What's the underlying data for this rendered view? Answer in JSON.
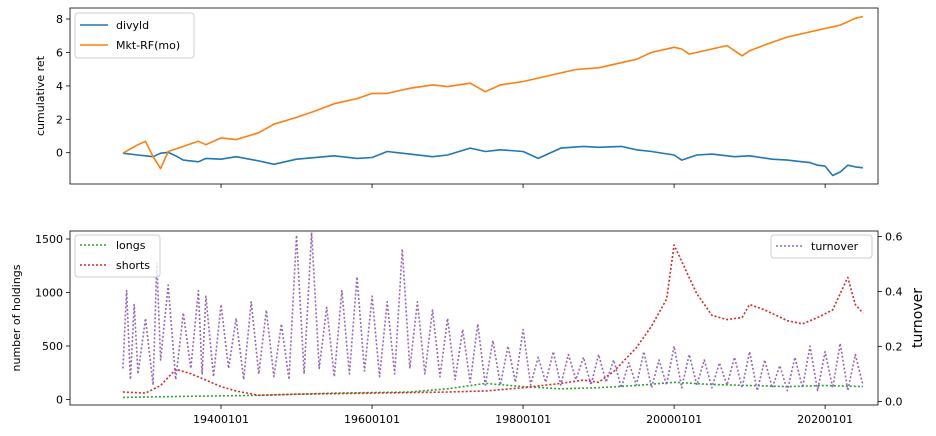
{
  "chart_data": [
    {
      "type": "line",
      "title": "",
      "xlabel": "",
      "ylabel": "cumulative ret",
      "xlim": [
        1920,
        2027
      ],
      "ylim": [
        -1.8,
        8.5
      ],
      "yticks": [
        "0",
        "2",
        "4",
        "6",
        "8"
      ],
      "grid": false,
      "legend": "upper-left",
      "series": [
        {
          "name": "divyld",
          "color": "#1f77b4",
          "x": [
            1927,
            1929,
            1931,
            1932,
            1933,
            1934,
            1935,
            1937,
            1938,
            1940,
            1942,
            1945,
            1947,
            1950,
            1955,
            1958,
            1960,
            1962,
            1965,
            1968,
            1970,
            1973,
            1975,
            1977,
            1980,
            1982,
            1985,
            1988,
            1990,
            1993,
            1995,
            1997,
            2000,
            2001,
            2003,
            2005,
            2008,
            2010,
            2013,
            2015,
            2017,
            2018,
            2019,
            2020,
            2021,
            2022,
            2023,
            2024,
            2025
          ],
          "values": [
            0.0,
            -0.1,
            -0.2,
            0.0,
            0.05,
            -0.15,
            -0.4,
            -0.5,
            -0.3,
            -0.35,
            -0.2,
            -0.45,
            -0.65,
            -0.35,
            -0.15,
            -0.3,
            -0.25,
            0.1,
            -0.05,
            -0.2,
            -0.1,
            0.3,
            0.1,
            0.2,
            0.1,
            -0.3,
            0.3,
            0.4,
            0.35,
            0.4,
            0.2,
            0.1,
            -0.1,
            -0.4,
            -0.1,
            -0.05,
            -0.2,
            -0.15,
            -0.35,
            -0.4,
            -0.5,
            -0.55,
            -0.7,
            -0.75,
            -1.3,
            -1.1,
            -0.7,
            -0.8,
            -0.85
          ]
        },
        {
          "name": "Mkt-RF(mo)",
          "color": "#ff7f0e",
          "x": [
            1927,
            1929,
            1930,
            1931,
            1932,
            1933,
            1935,
            1937,
            1938,
            1940,
            1942,
            1945,
            1947,
            1950,
            1952,
            1955,
            1958,
            1960,
            1962,
            1965,
            1968,
            1970,
            1973,
            1975,
            1977,
            1980,
            1982,
            1985,
            1987,
            1990,
            1993,
            1995,
            1997,
            2000,
            2001,
            2002,
            2005,
            2007,
            2008,
            2009,
            2010,
            2013,
            2015,
            2017,
            2018,
            2019,
            2020,
            2021,
            2022,
            2023,
            2024,
            2025
          ],
          "values": [
            0.0,
            0.5,
            0.7,
            -0.2,
            -0.9,
            0.1,
            0.4,
            0.7,
            0.5,
            0.9,
            0.8,
            1.2,
            1.7,
            2.1,
            2.4,
            2.9,
            3.2,
            3.5,
            3.5,
            3.8,
            4.0,
            3.9,
            4.1,
            3.6,
            4.0,
            4.2,
            4.4,
            4.7,
            4.9,
            5.0,
            5.3,
            5.5,
            5.9,
            6.2,
            6.1,
            5.8,
            6.1,
            6.3,
            6.0,
            5.7,
            6.0,
            6.5,
            6.8,
            7.0,
            7.1,
            7.2,
            7.3,
            7.4,
            7.5,
            7.7,
            7.9,
            8.0
          ]
        }
      ]
    },
    {
      "type": "line",
      "title": "",
      "xlabel": "",
      "ylabel": "number of holdings",
      "y2label": "turnover",
      "xlim": [
        1920,
        2027
      ],
      "ylim": [
        -30,
        1580
      ],
      "y2lim": [
        -0.012,
        0.615
      ],
      "xticks": [
        "19400101",
        "19600101",
        "19800101",
        "20000101",
        "20200101"
      ],
      "yticks": [
        "0",
        "500",
        "1000",
        "1500"
      ],
      "y2ticks": [
        "0.0",
        "0.2",
        "0.4",
        "0.6"
      ],
      "grid": false,
      "legend": "upper-left",
      "legend2": "upper-right",
      "series": [
        {
          "name": "longs",
          "color": "#2ca02c",
          "axis": "left",
          "style": "dotted",
          "x": [
            1927,
            1935,
            1945,
            1955,
            1965,
            1970,
            1975,
            1980,
            1985,
            1990,
            1995,
            2000,
            2005,
            2010,
            2015,
            2020,
            2025
          ],
          "values": [
            40,
            50,
            60,
            80,
            90,
            120,
            170,
            140,
            120,
            130,
            150,
            180,
            160,
            150,
            140,
            150,
            140
          ]
        },
        {
          "name": "shorts",
          "color": "#d62728",
          "axis": "left",
          "style": "dotted",
          "x": [
            1927,
            1930,
            1932,
            1934,
            1936,
            1938,
            1940,
            1942,
            1945,
            1950,
            1955,
            1960,
            1965,
            1970,
            1975,
            1980,
            1985,
            1988,
            1990,
            1992,
            1995,
            1997,
            1999,
            2000,
            2001,
            2002,
            2003,
            2005,
            2007,
            2009,
            2010,
            2012,
            2015,
            2017,
            2019,
            2021,
            2022,
            2023,
            2024,
            2025
          ],
          "values": [
            90,
            80,
            150,
            300,
            260,
            200,
            140,
            100,
            60,
            70,
            75,
            80,
            85,
            90,
            100,
            130,
            170,
            200,
            180,
            280,
            500,
            700,
            950,
            1450,
            1300,
            1150,
            1000,
            800,
            760,
            780,
            900,
            850,
            750,
            720,
            780,
            850,
            1000,
            1150,
            900,
            820
          ]
        },
        {
          "name": "turnover",
          "color": "#9467bd",
          "axis": "right",
          "style": "dotted",
          "x": [
            1927,
            1927.5,
            1928,
            1928.5,
            1929,
            1930,
            1931,
            1931.5,
            1932,
            1933,
            1934,
            1935,
            1936,
            1937,
            1937.5,
            1938,
            1939,
            1940,
            1941,
            1942,
            1943,
            1944,
            1945,
            1946,
            1947,
            1948,
            1949,
            1950,
            1951,
            1952,
            1953,
            1954,
            1955,
            1956,
            1957,
            1958,
            1959,
            1960,
            1961,
            1962,
            1963,
            1964,
            1965,
            1966,
            1967,
            1968,
            1969,
            1970,
            1971,
            1972,
            1973,
            1974,
            1975,
            1976,
            1977,
            1978,
            1979,
            1980,
            1981,
            1982,
            1983,
            1984,
            1985,
            1986,
            1987,
            1988,
            1989,
            1990,
            1991,
            1992,
            1993,
            1994,
            1995,
            1996,
            1997,
            1998,
            1999,
            2000,
            2001,
            2002,
            2003,
            2004,
            2005,
            2006,
            2007,
            2008,
            2009,
            2010,
            2011,
            2012,
            2013,
            2014,
            2015,
            2016,
            2017,
            2018,
            2019,
            2020,
            2021,
            2022,
            2023,
            2024,
            2025
          ],
          "values": [
            0.12,
            0.4,
            0.08,
            0.35,
            0.1,
            0.3,
            0.06,
            0.5,
            0.15,
            0.42,
            0.08,
            0.32,
            0.12,
            0.4,
            0.1,
            0.38,
            0.09,
            0.35,
            0.12,
            0.3,
            0.08,
            0.36,
            0.1,
            0.33,
            0.09,
            0.28,
            0.08,
            0.6,
            0.1,
            0.61,
            0.12,
            0.34,
            0.09,
            0.4,
            0.1,
            0.45,
            0.11,
            0.38,
            0.09,
            0.36,
            0.1,
            0.55,
            0.12,
            0.36,
            0.1,
            0.33,
            0.09,
            0.3,
            0.08,
            0.26,
            0.07,
            0.28,
            0.06,
            0.22,
            0.06,
            0.2,
            0.07,
            0.26,
            0.06,
            0.16,
            0.07,
            0.18,
            0.06,
            0.17,
            0.08,
            0.16,
            0.06,
            0.17,
            0.07,
            0.15,
            0.05,
            0.14,
            0.06,
            0.18,
            0.05,
            0.15,
            0.06,
            0.2,
            0.05,
            0.17,
            0.06,
            0.15,
            0.05,
            0.14,
            0.06,
            0.16,
            0.05,
            0.18,
            0.04,
            0.15,
            0.05,
            0.13,
            0.04,
            0.16,
            0.05,
            0.2,
            0.04,
            0.18,
            0.05,
            0.21,
            0.04,
            0.17,
            0.06
          ]
        }
      ]
    }
  ]
}
